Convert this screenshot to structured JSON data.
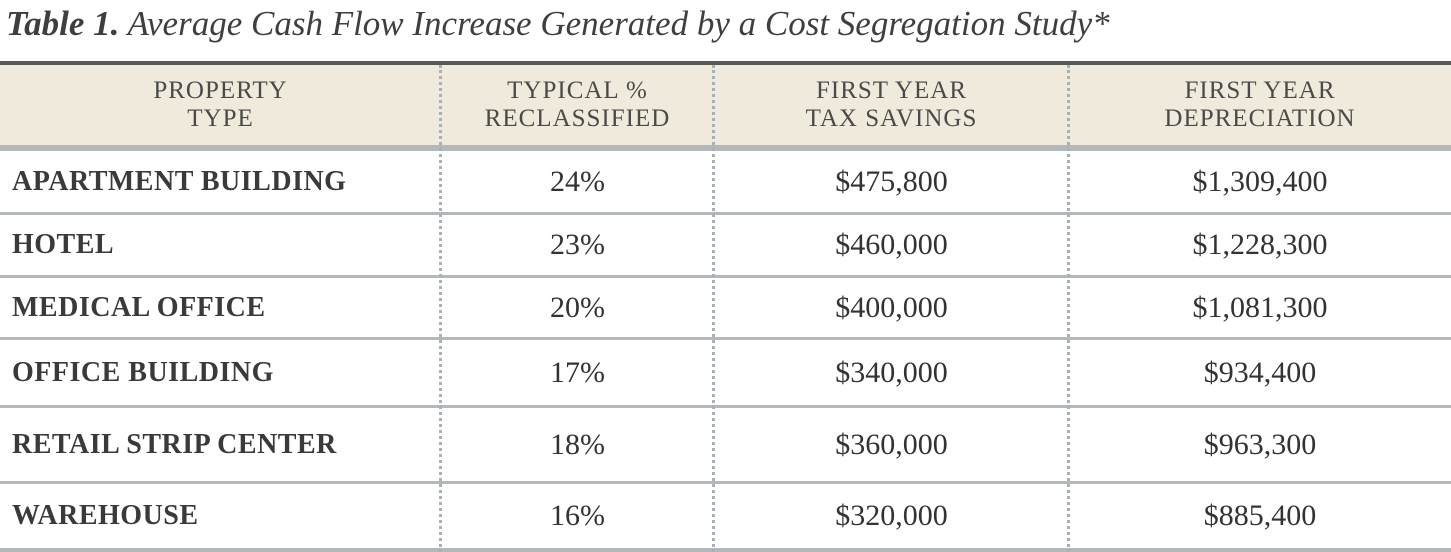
{
  "caption": {
    "label": "Table 1.",
    "title": " Average Cash Flow Increase Generated by a Cost Segregation Study*"
  },
  "table": {
    "headers": [
      [
        "PROPERTY",
        "TYPE"
      ],
      [
        "TYPICAL %",
        "RECLASSIFIED"
      ],
      [
        "FIRST YEAR",
        "TAX SAVINGS"
      ],
      [
        "FIRST YEAR",
        "DEPRECIATION"
      ]
    ],
    "rows": [
      [
        "APARTMENT BUILDING",
        "24%",
        "$475,800",
        "$1,309,400"
      ],
      [
        "HOTEL",
        "23%",
        "$460,000",
        "$1,228,300"
      ],
      [
        "MEDICAL OFFICE",
        "20%",
        "$400,000",
        "$1,081,300"
      ],
      [
        "OFFICE BUILDING",
        "17%",
        "$340,000",
        "$934,400"
      ],
      [
        "RETAIL STRIP CENTER",
        "18%",
        "$360,000",
        "$963,300"
      ],
      [
        "WAREHOUSE",
        "16%",
        "$320,000",
        "$885,400"
      ]
    ]
  },
  "colors": {
    "header_bg": "#efeadb",
    "rule_dark": "#555a55",
    "rule_light": "#b3b8bb",
    "separator": "#a9b1b8"
  }
}
